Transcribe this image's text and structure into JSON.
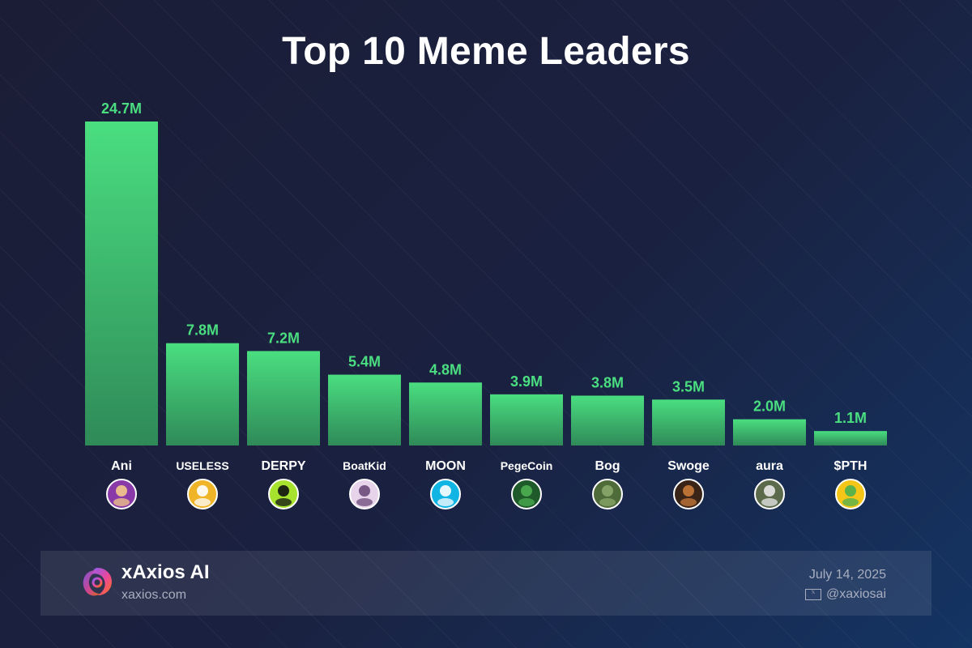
{
  "title": "Top 10 Meme Leaders",
  "chart_data": {
    "type": "bar",
    "title": "Top 10 Meme Leaders",
    "categories": [
      "Ani",
      "USELESS",
      "DERPY",
      "BoatKid",
      "MOON",
      "PegeCoin",
      "Bog",
      "Swoge",
      "aura",
      "$PTH"
    ],
    "values": [
      24.7,
      7.8,
      7.2,
      5.4,
      4.8,
      3.9,
      3.8,
      3.5,
      2.0,
      1.1
    ],
    "value_labels": [
      "24.7M",
      "7.8M",
      "7.2M",
      "5.4M",
      "4.8M",
      "3.9M",
      "3.8M",
      "3.5M",
      "2.0M",
      "1.1M"
    ],
    "unit": "M",
    "ylim": [
      0,
      24.7
    ],
    "grid": false,
    "legend": "none",
    "colors": {
      "bar_top": "#4ade80",
      "bar_bottom": "#2f8a58",
      "value_label": "#4ade80",
      "category_label": "#ffffff"
    },
    "token_icons": [
      {
        "name": "ani-avatar-icon",
        "bg": "#8a3aa8",
        "fg": "#f2c98a"
      },
      {
        "name": "useless-logo-icon",
        "bg": "#f0b429",
        "fg": "#ffffff"
      },
      {
        "name": "derpy-mascot-icon",
        "bg": "#a6e22e",
        "fg": "#111111"
      },
      {
        "name": "boatkid-picture-icon",
        "bg": "#e7d3ea",
        "fg": "#6b4a7a"
      },
      {
        "name": "moon-logo-icon",
        "bg": "#11b5e4",
        "fg": "#ffffff"
      },
      {
        "name": "pegecoin-frog-icon",
        "bg": "#1e5a2a",
        "fg": "#4caf50"
      },
      {
        "name": "bog-creature-icon",
        "bg": "#4f6b3a",
        "fg": "#8aa86a"
      },
      {
        "name": "swoge-dog-icon",
        "bg": "#3a2418",
        "fg": "#c87a3a"
      },
      {
        "name": "aura-figure-icon",
        "bg": "#5a6a4a",
        "fg": "#e8e8e8"
      },
      {
        "name": "pth-frog-icon",
        "bg": "#f5c518",
        "fg": "#4caf50"
      }
    ]
  },
  "footer": {
    "brand": "xAxios AI",
    "url": "xaxios.com",
    "date": "July 14, 2025",
    "handle": "@xaxiosai",
    "handle_icon": "x-social-icon",
    "logo_icon": "xaxios-logo-icon",
    "logo_colors": [
      "#8b5cf6",
      "#ec4899",
      "#f97316"
    ]
  }
}
